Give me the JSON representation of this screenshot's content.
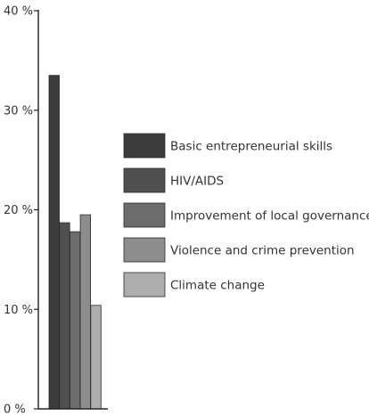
{
  "chart_data": {
    "type": "bar",
    "title": "",
    "xlabel": "",
    "ylabel": "",
    "ylim": [
      0,
      40
    ],
    "ytick_values": [
      0,
      10,
      20,
      30,
      40
    ],
    "ytick_labels": [
      "0 %",
      "10 %",
      "20 %",
      "30 %",
      "40 %"
    ],
    "grid": false,
    "legend_position": "right",
    "series": [
      {
        "name": "Basic entrepreneurial skills",
        "value": 33.5,
        "color": "#3c3c3c"
      },
      {
        "name": "HIV/AIDS",
        "value": 18.7,
        "color": "#505050"
      },
      {
        "name": "Improvement of local governance",
        "value": 17.8,
        "color": "#6c6c6c"
      },
      {
        "name": "Violence and crime prevention",
        "value": 19.5,
        "color": "#8d8d8d"
      },
      {
        "name": "Climate change",
        "value": 10.4,
        "color": "#adadad"
      }
    ]
  }
}
